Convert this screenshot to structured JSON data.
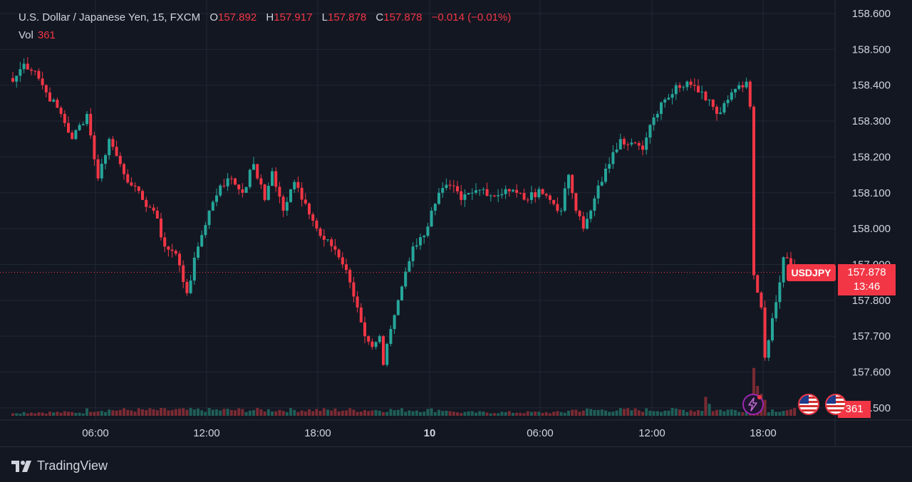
{
  "legend": {
    "symbol": "U.S. Dollar / Japanese Yen, 15, FXCM",
    "o_label": "O",
    "o_value": "157.892",
    "h_label": "H",
    "h_value": "157.917",
    "l_label": "L",
    "l_value": "157.878",
    "c_label": "C",
    "c_value": "157.878",
    "change": "−0.014 (−0.01%)"
  },
  "volume_legend": {
    "label": "Vol",
    "value": "361"
  },
  "badges": {
    "symbol": "USDJPY",
    "last_price": "157.878",
    "countdown": "13:46",
    "volume": "361"
  },
  "branding": {
    "name": "TradingView"
  },
  "colors": {
    "background": "#131722",
    "up": "#26a69a",
    "down": "#f23645",
    "grid": "#232735",
    "text": "#d1d4dc"
  },
  "icons": [
    "lightning-icon",
    "us-flag-icon",
    "us-flag-icon"
  ],
  "chart_data": {
    "type": "candlestick",
    "timeframe": "15",
    "y_ticks": [
      "158.600",
      "158.500",
      "158.400",
      "158.300",
      "158.200",
      "158.100",
      "158.000",
      "157.900",
      "157.800",
      "157.700",
      "157.600",
      "157.500"
    ],
    "x_ticks": [
      "06:00",
      "12:00",
      "18:00",
      "10",
      "06:00",
      "12:00",
      "18:00"
    ],
    "ylim": [
      157.5,
      158.62
    ],
    "last_price": 157.878,
    "grid": true,
    "anchors": [
      {
        "t": 0,
        "p": 158.41
      },
      {
        "t": 3,
        "p": 158.46
      },
      {
        "t": 6,
        "p": 158.44
      },
      {
        "t": 9,
        "p": 158.38
      },
      {
        "t": 13,
        "p": 158.32
      },
      {
        "t": 16,
        "p": 158.25
      },
      {
        "t": 20,
        "p": 158.32
      },
      {
        "t": 23,
        "p": 158.14
      },
      {
        "t": 26,
        "p": 158.25
      },
      {
        "t": 29,
        "p": 158.18
      },
      {
        "t": 32,
        "p": 158.12
      },
      {
        "t": 35,
        "p": 158.08
      },
      {
        "t": 38,
        "p": 158.05
      },
      {
        "t": 41,
        "p": 157.95
      },
      {
        "t": 44,
        "p": 157.93
      },
      {
        "t": 47,
        "p": 157.82
      },
      {
        "t": 50,
        "p": 157.95
      },
      {
        "t": 53,
        "p": 158.05
      },
      {
        "t": 56,
        "p": 158.12
      },
      {
        "t": 59,
        "p": 158.14
      },
      {
        "t": 62,
        "p": 158.1
      },
      {
        "t": 65,
        "p": 158.18
      },
      {
        "t": 68,
        "p": 158.08
      },
      {
        "t": 70,
        "p": 158.16
      },
      {
        "t": 73,
        "p": 158.05
      },
      {
        "t": 76,
        "p": 158.13
      },
      {
        "t": 79,
        "p": 158.07
      },
      {
        "t": 82,
        "p": 158.0
      },
      {
        "t": 85,
        "p": 157.97
      },
      {
        "t": 88,
        "p": 157.92
      },
      {
        "t": 91,
        "p": 157.85
      },
      {
        "t": 93,
        "p": 157.78
      },
      {
        "t": 95,
        "p": 157.7
      },
      {
        "t": 97,
        "p": 157.67
      },
      {
        "t": 99,
        "p": 157.7
      },
      {
        "t": 100,
        "p": 157.62
      },
      {
        "t": 102,
        "p": 157.72
      },
      {
        "t": 104,
        "p": 157.8
      },
      {
        "t": 106,
        "p": 157.88
      },
      {
        "t": 108,
        "p": 157.95
      },
      {
        "t": 111,
        "p": 157.98
      },
      {
        "t": 113,
        "p": 158.05
      },
      {
        "t": 115,
        "p": 158.1
      },
      {
        "t": 118,
        "p": 158.12
      },
      {
        "t": 121,
        "p": 158.08
      },
      {
        "t": 124,
        "p": 158.1
      },
      {
        "t": 127,
        "p": 158.11
      },
      {
        "t": 130,
        "p": 158.09
      },
      {
        "t": 133,
        "p": 158.11
      },
      {
        "t": 136,
        "p": 158.1
      },
      {
        "t": 139,
        "p": 158.08
      },
      {
        "t": 142,
        "p": 158.11
      },
      {
        "t": 145,
        "p": 158.08
      },
      {
        "t": 148,
        "p": 158.05
      },
      {
        "t": 150,
        "p": 158.15
      },
      {
        "t": 152,
        "p": 158.05
      },
      {
        "t": 154,
        "p": 158.0
      },
      {
        "t": 156,
        "p": 158.05
      },
      {
        "t": 158,
        "p": 158.12
      },
      {
        "t": 161,
        "p": 158.18
      },
      {
        "t": 164,
        "p": 158.25
      },
      {
        "t": 167,
        "p": 158.24
      },
      {
        "t": 170,
        "p": 158.22
      },
      {
        "t": 173,
        "p": 158.31
      },
      {
        "t": 176,
        "p": 158.36
      },
      {
        "t": 179,
        "p": 158.4
      },
      {
        "t": 182,
        "p": 158.41
      },
      {
        "t": 185,
        "p": 158.38
      },
      {
        "t": 188,
        "p": 158.36
      },
      {
        "t": 190,
        "p": 158.32
      },
      {
        "t": 192,
        "p": 158.35
      },
      {
        "t": 194,
        "p": 158.38
      },
      {
        "t": 196,
        "p": 158.4
      },
      {
        "t": 198,
        "p": 158.41
      },
      {
        "t": 199,
        "p": 158.34
      },
      {
        "t": 200,
        "p": 157.87
      },
      {
        "t": 202,
        "p": 157.78
      },
      {
        "t": 203,
        "p": 157.64
      },
      {
        "t": 205,
        "p": 157.75
      },
      {
        "t": 207,
        "p": 157.85
      },
      {
        "t": 208,
        "p": 157.92
      },
      {
        "t": 210,
        "p": 157.9
      },
      {
        "t": 211,
        "p": 157.878
      }
    ],
    "volume_ylim": [
      0,
      100
    ],
    "volume_spikes": [
      {
        "t": 187,
        "v": 95
      },
      {
        "t": 188,
        "v": 60
      },
      {
        "t": 200,
        "v": 240
      },
      {
        "t": 201,
        "v": 150
      },
      {
        "t": 202,
        "v": 110
      },
      {
        "t": 203,
        "v": 80
      }
    ]
  }
}
